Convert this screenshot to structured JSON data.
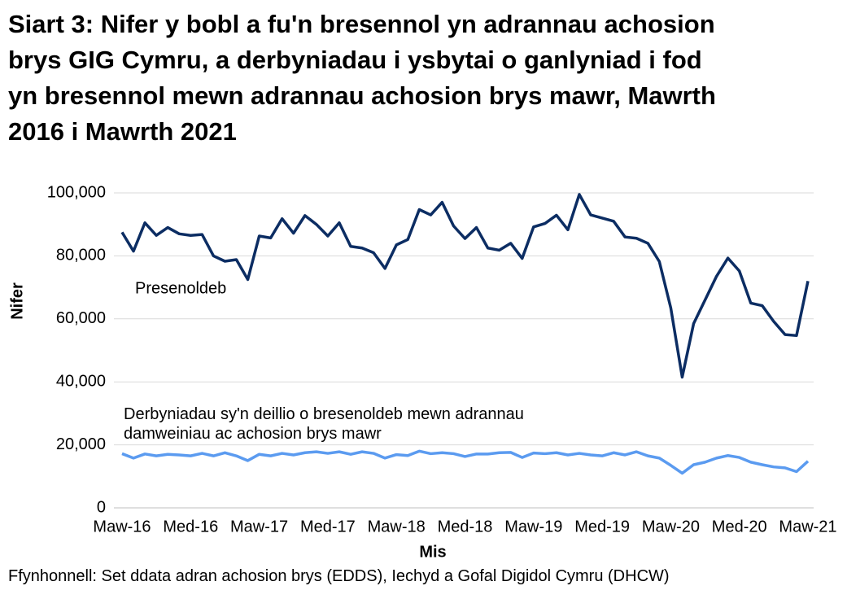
{
  "chart_data": {
    "type": "line",
    "title": "Siart 3: Nifer y bobl a fu'n bresennol yn adrannau achosion brys GIG Cymru, a derbyniadau i ysbytai o ganlyniad i fod yn bresennol mewn adrannau achosion brys mawr, Mawrth 2016 i Mawrth 2021",
    "source": "Ffynhonnell: Set ddata adran achosion brys (EDDS), Iechyd a Gofal Digidol Cymru (DHCW)",
    "x_label": "Mis",
    "y_label": "Nifer",
    "categories": [
      "Maw-16",
      null,
      null,
      null,
      null,
      null,
      "Med-16",
      null,
      null,
      null,
      null,
      null,
      "Maw-17",
      null,
      null,
      null,
      null,
      null,
      "Med-17",
      null,
      null,
      null,
      null,
      null,
      "Maw-18",
      null,
      null,
      null,
      null,
      null,
      "Med-18",
      null,
      null,
      null,
      null,
      null,
      "Maw-19",
      null,
      null,
      null,
      null,
      null,
      "Med-19",
      null,
      null,
      null,
      null,
      null,
      "Maw-20",
      null,
      null,
      null,
      null,
      null,
      "Med-20",
      null,
      null,
      null,
      null,
      null,
      "Maw-21"
    ],
    "series": [
      {
        "name": "Presenoldeb",
        "color": "#0c2d63",
        "values": [
          87500,
          81500,
          90500,
          86500,
          89000,
          87000,
          86500,
          86800,
          80000,
          78300,
          78800,
          72500,
          86300,
          85700,
          91800,
          87200,
          92800,
          90000,
          86300,
          90500,
          83000,
          82500,
          81000,
          76000,
          83500,
          85200,
          94700,
          93000,
          97000,
          89500,
          85500,
          89000,
          82500,
          81800,
          84000,
          79200,
          89200,
          90300,
          92900,
          88300,
          99500,
          93000,
          92000,
          91000,
          86000,
          85600,
          84000,
          78200,
          63500,
          41500,
          58500,
          66000,
          73500,
          79300,
          75200,
          65000,
          64200,
          59200,
          55000,
          54700,
          72000
        ]
      },
      {
        "name": "Derbyniadau sy'n deillio o bresenoldeb mewn adrannau damweiniau ac achosion brys mawr",
        "color": "#5b9bf0",
        "values": [
          17200,
          15800,
          17100,
          16500,
          17000,
          16800,
          16500,
          17300,
          16500,
          17500,
          16500,
          15000,
          17000,
          16500,
          17300,
          16800,
          17500,
          17800,
          17300,
          17800,
          17000,
          17800,
          17300,
          15800,
          16900,
          16600,
          18000,
          17200,
          17500,
          17200,
          16300,
          17100,
          17100,
          17500,
          17600,
          16000,
          17400,
          17200,
          17500,
          16800,
          17300,
          16800,
          16500,
          17500,
          16800,
          17800,
          16500,
          15800,
          13500,
          11000,
          13700,
          14500,
          15800,
          16600,
          16000,
          14500,
          13700,
          13000,
          12700,
          11500,
          14800
        ]
      }
    ],
    "ylim": [
      0,
      100000
    ],
    "yticks": [
      0,
      {
        "value": 20000,
        "label": "20,000"
      },
      {
        "value": 40000,
        "label": "40,000"
      },
      {
        "value": 60000,
        "label": "60,000"
      },
      {
        "value": 80000,
        "label": "80,000"
      },
      {
        "value": 100000,
        "label": "100,000"
      }
    ],
    "grid": true
  }
}
